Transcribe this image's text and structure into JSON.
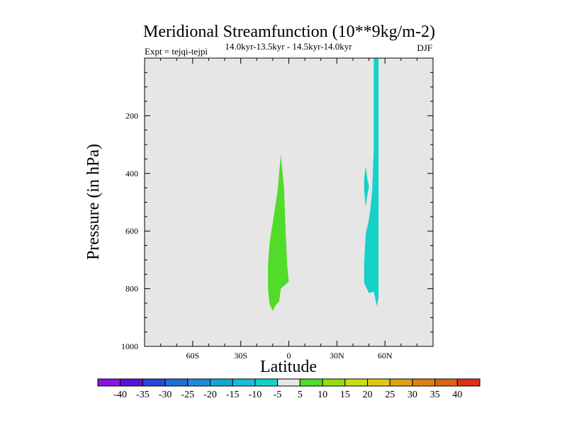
{
  "chart_data": {
    "type": "heatmap",
    "title": "Meridional Streamfunction (10**9kg/m-2)",
    "subtitle_left": "Expt = tejqi-tejpi",
    "subtitle_center": "14.0kyr-13.5kyr - 14.5kyr-14.0kyr",
    "subtitle_right": "DJF",
    "xlabel": "Latitude",
    "ylabel": "Pressure (in hPa)",
    "xlim": [
      -90,
      90
    ],
    "ylim": [
      1000,
      0
    ],
    "x_ticks": [
      {
        "value": -60,
        "label": "60S"
      },
      {
        "value": -30,
        "label": "30S"
      },
      {
        "value": 0,
        "label": "0"
      },
      {
        "value": 30,
        "label": "30N"
      },
      {
        "value": 60,
        "label": "60N"
      }
    ],
    "y_ticks": [
      {
        "value": 200,
        "label": "200"
      },
      {
        "value": 400,
        "label": "400"
      },
      {
        "value": 600,
        "label": "600"
      },
      {
        "value": 800,
        "label": "800"
      },
      {
        "value": 1000,
        "label": "1000"
      }
    ],
    "background_fill": "#e6e6e6",
    "contour_levels": [
      -40,
      -35,
      -30,
      -25,
      -20,
      -15,
      -10,
      -5,
      5,
      10,
      15,
      20,
      25,
      30,
      35,
      40
    ],
    "colorbar_colors": [
      "#8a14e0",
      "#5a14d8",
      "#2846d8",
      "#1e6ed8",
      "#1e8cd8",
      "#14a5d8",
      "#14bed8",
      "#14d2c8",
      "#e6e6e6",
      "#50dc28",
      "#96dc14",
      "#c8dc14",
      "#dcc814",
      "#dca014",
      "#dc8214",
      "#dc6414",
      "#dc3214"
    ],
    "regions": [
      {
        "name": "positive-5-10",
        "color": "#50dc28",
        "points": [
          [
            -5,
            335
          ],
          [
            -3,
            450
          ],
          [
            -2,
            600
          ],
          [
            -1,
            720
          ],
          [
            0,
            775
          ],
          [
            -2,
            785
          ],
          [
            -5,
            800
          ],
          [
            -6,
            845
          ],
          [
            -8,
            855
          ],
          [
            -10,
            877
          ],
          [
            -12,
            855
          ],
          [
            -13,
            795
          ],
          [
            -13,
            720
          ],
          [
            -12,
            640
          ],
          [
            -10,
            570
          ],
          [
            -7,
            460
          ]
        ]
      },
      {
        "name": "negative-10-5-column",
        "color": "#14d2c8",
        "points": [
          [
            53,
            0
          ],
          [
            56,
            0
          ],
          [
            56,
            830
          ],
          [
            55,
            862
          ],
          [
            53,
            810
          ],
          [
            50,
            815
          ],
          [
            47,
            780
          ],
          [
            47,
            710
          ],
          [
            48,
            610
          ],
          [
            50,
            560
          ],
          [
            51,
            520
          ],
          [
            52,
            460
          ],
          [
            53,
            320
          ]
        ]
      },
      {
        "name": "negative-10-5-sliver",
        "color": "#14d2c8",
        "points": [
          [
            48,
            375
          ],
          [
            49,
            420
          ],
          [
            50,
            445
          ],
          [
            49,
            475
          ],
          [
            48,
            515
          ],
          [
            47,
            460
          ],
          [
            47,
            420
          ]
        ]
      }
    ]
  }
}
